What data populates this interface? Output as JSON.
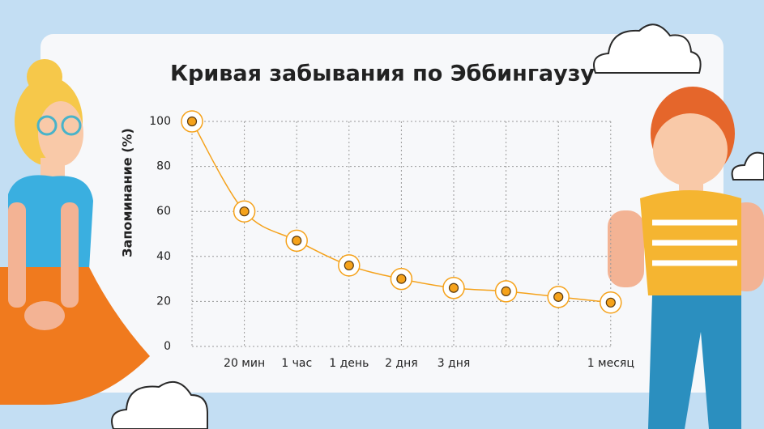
{
  "chart_data": {
    "type": "line",
    "title": "Кривая забывания по Эббингаузу",
    "y_label": "Запоминание (%)",
    "categories": [
      null,
      "20 мин",
      "1 час",
      "1 день",
      "2 дня",
      "3 дня",
      null,
      null,
      "1 месяц"
    ],
    "series": [
      {
        "name": "Запоминание",
        "color": "#f5a21b",
        "values": [
          100,
          60,
          47,
          36,
          30,
          26,
          24.5,
          22,
          19.5
        ]
      }
    ],
    "ylim": [
      0,
      100
    ],
    "yticks": [
      0,
      20,
      40,
      60,
      80,
      100
    ],
    "grid": true
  }
}
